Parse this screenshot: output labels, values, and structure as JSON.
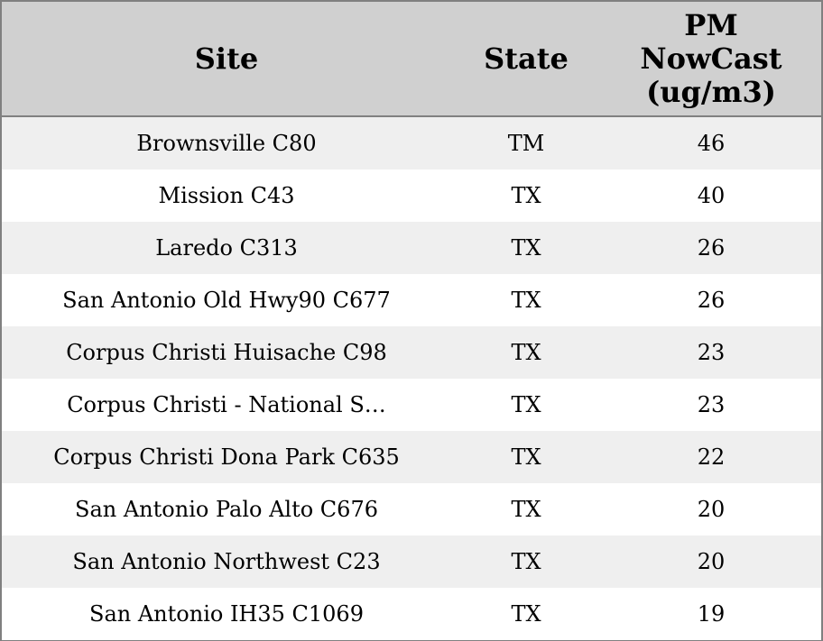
{
  "table": {
    "columns": [
      "Site",
      "State",
      "PM NowCast (ug/m3)"
    ],
    "rows": [
      [
        "Brownsville C80",
        "TM",
        46
      ],
      [
        "Mission C43",
        "TX",
        40
      ],
      [
        "Laredo C313",
        "TX",
        26
      ],
      [
        "San Antonio Old Hwy90 C677",
        "TX",
        26
      ],
      [
        "Corpus Christi Huisache C98",
        "TX",
        23
      ],
      [
        "Corpus Christi - National S…",
        "TX",
        23
      ],
      [
        "Corpus Christi Dona Park C635",
        "TX",
        22
      ],
      [
        "San Antonio Palo Alto C676",
        "TX",
        20
      ],
      [
        "San Antonio Northwest C23",
        "TX",
        20
      ],
      [
        "San Antonio IH35 C1069",
        "TX",
        19
      ]
    ]
  }
}
